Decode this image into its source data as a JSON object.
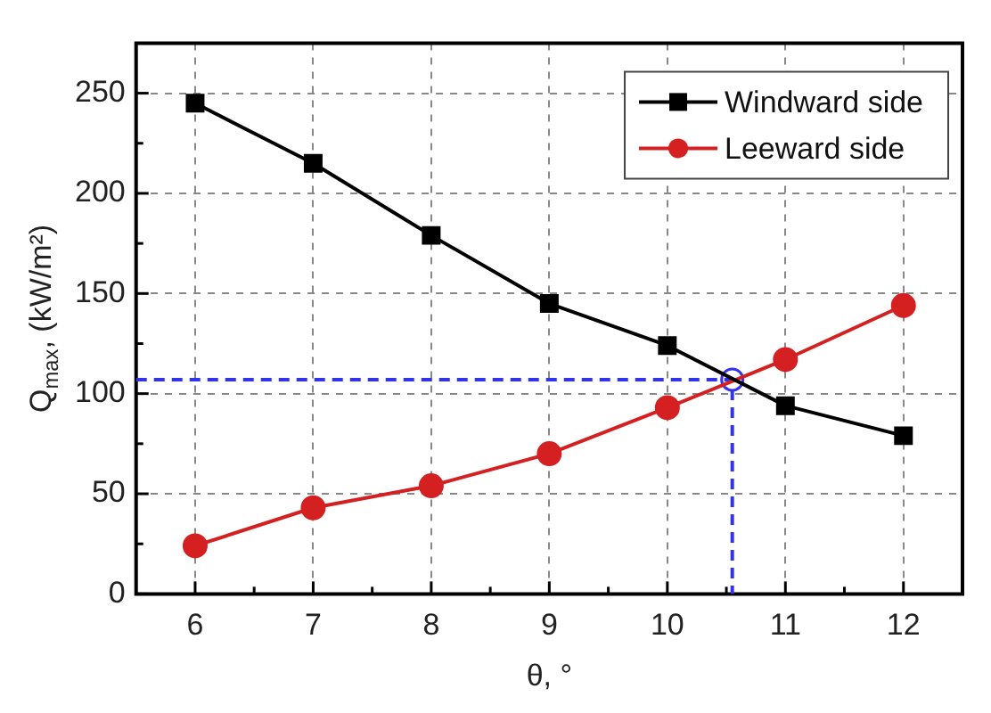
{
  "chart_data": {
    "type": "line",
    "xlabel": "θ, °",
    "ylabel": "Q$_{max}$, (kW/m²)",
    "xlim": [
      5.5,
      12.5
    ],
    "xticks": [
      6,
      7,
      8,
      9,
      10,
      11,
      12
    ],
    "ylim": [
      0,
      275
    ],
    "yticks": [
      0,
      50,
      100,
      150,
      200,
      250
    ],
    "grid": true,
    "legend": "top right",
    "series": [
      {
        "name": "Windward side",
        "color": "#000000",
        "marker": "square",
        "x": [
          6,
          7,
          8,
          9,
          10,
          11,
          12
        ],
        "values": [
          245,
          215,
          179,
          145,
          124,
          94,
          79
        ]
      },
      {
        "name": "Leeward side",
        "color": "#d42020",
        "marker": "circle",
        "x": [
          6,
          7,
          8,
          9,
          10,
          11,
          12
        ],
        "values": [
          24,
          43,
          54,
          70,
          93,
          117,
          144
        ]
      },
      {
        "color": "#3333ee",
        "marker": "none",
        "line_style": "dashed",
        "x": [
          5.5,
          10.55,
          10.55
        ],
        "values": [
          107,
          107,
          0
        ]
      },
      {
        "type": "scatter",
        "color": "#3333ee",
        "marker": "circle",
        "x": [
          10.55
        ],
        "values": [
          107
        ]
      }
    ]
  }
}
